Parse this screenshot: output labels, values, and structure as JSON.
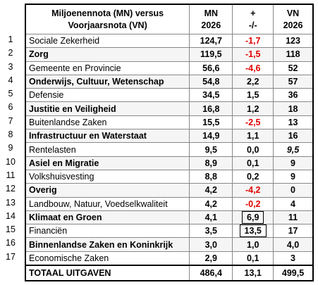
{
  "header": {
    "title_line1": "Miljoenennota (MN)  versus",
    "title_line2": "Voorjaarsnota (VN)",
    "mn_line1": "MN",
    "mn_line2": "2026",
    "change_line1": "+",
    "change_line2": "-/-",
    "vn_line1": "VN",
    "vn_line2": "2026"
  },
  "table": {
    "rows": [
      [
        "1",
        "Sociale Zekerheid",
        "124,7",
        "-1,7",
        "123"
      ],
      [
        "2",
        "Zorg",
        "119,5",
        "-1,5",
        "118"
      ],
      [
        "3",
        "Gemeente en Provincie",
        "56,6",
        "-4,6",
        "52"
      ],
      [
        "4",
        "Onderwijs, Cultuur, Wetenschap",
        "54,8",
        "2,2",
        "57"
      ],
      [
        "5",
        "Defensie",
        "34,5",
        "1,5",
        "36"
      ],
      [
        "6",
        "Justitie en Veiligheid",
        "16,8",
        "1,2",
        "18"
      ],
      [
        "7",
        "Buitenlandse Zaken",
        "15,5",
        "-2,5",
        "13"
      ],
      [
        "8",
        "Infrastructuur en Waterstaat",
        "14,9",
        "1,1",
        "16"
      ],
      [
        "9",
        "Rentelasten",
        "9,5",
        "0,0",
        "9,5"
      ],
      [
        "10",
        "Asiel en Migratie",
        "8,9",
        "0,1",
        "9"
      ],
      [
        "11",
        "Volkshuisvesting",
        "8,8",
        "0,2",
        "9"
      ],
      [
        "12",
        "Overig",
        "4,2",
        "-4,2",
        "0"
      ],
      [
        "13",
        "Landbouw, Natuur, Voedselkwaliteit",
        "4,2",
        "-0,2",
        "4"
      ],
      [
        "14",
        "Klimaat en Groen",
        "4,1",
        "6,9",
        "11"
      ],
      [
        "15",
        "Financiën",
        "3,5",
        "13,5",
        "17"
      ],
      [
        "16",
        "Binnenlandse Zaken en Koninkrijk",
        "3,0",
        "1,0",
        "4,0"
      ],
      [
        "17",
        "Economische Zaken",
        "2,9",
        "0,1",
        "3"
      ]
    ],
    "total": [
      "TOTAAL UITGAVEN",
      "486,4",
      "13,1",
      "499,5"
    ]
  }
}
